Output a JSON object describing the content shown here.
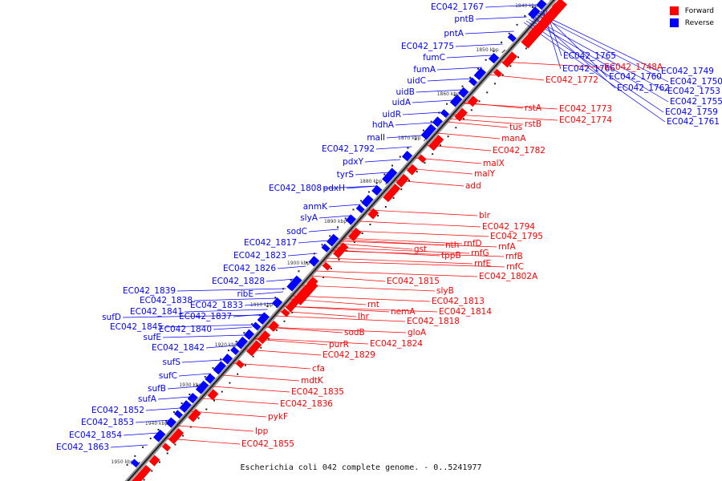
{
  "legend": {
    "forward_label": "Forward",
    "reverse_label": "Reverse",
    "forward_color": "#ff0000",
    "reverse_color": "#0000ff"
  },
  "caption": "Escherichia coli 042 complete genome. - 0..5241977",
  "ticks": [
    "1840 kbp",
    "1850 kbp",
    "1860 kbp",
    "1870 kbp",
    "1880 kbp",
    "1890 kbp",
    "1900 kbp",
    "1910 kbp",
    "1920 kbp",
    "1930 kbp",
    "1940 kbp",
    "1950 kbp"
  ],
  "reverse_labels": [
    "EC042_1767",
    "pntB",
    "pntA",
    "EC042_1775",
    "fumC",
    "fumA",
    "uidC",
    "uidB",
    "uidA",
    "uidR",
    "hdhA",
    "malI",
    "EC042_1792",
    "pdxY",
    "tyrS",
    "EC042_1808",
    "pdxH",
    "anmK",
    "slyA",
    "sodC",
    "EC042_1817",
    "EC042_1823",
    "EC042_1826",
    "EC042_1828",
    "ribE",
    "EC042_1839",
    "EC042_1838",
    "EC042_1841",
    "EC042_1833",
    "EC042_1837",
    "sufD",
    "EC042_1845",
    "EC042_1840",
    "sufE",
    "EC042_1842",
    "sufS",
    "sufC",
    "sufB",
    "sufA",
    "EC042_1852",
    "EC042_1853",
    "EC042_1854",
    "EC042_1863",
    "EC042_1765",
    "EC042_1766",
    "EC042_1760",
    "EC042_1749",
    "EC042_1750",
    "EC042_1762",
    "EC042_1753",
    "EC042_1755",
    "EC042_1759",
    "EC042_1761"
  ],
  "forward_labels": [
    "EC042_1748A",
    "EC042_1772",
    "rstA",
    "rstB",
    "EC042_1773",
    "EC042_1774",
    "tus",
    "manA",
    "EC042_1782",
    "malX",
    "malY",
    "add",
    "blr",
    "EC042_1794",
    "EC042_1795",
    "rnfA",
    "rnfB",
    "rnfC",
    "EC042_1802A",
    "nth",
    "rnfD",
    "rnfG",
    "tppB",
    "rnfE",
    "gst",
    "EC042_1815",
    "slyB",
    "EC042_1813",
    "EC042_1814",
    "rnt",
    "nemA",
    "EC042_1818",
    "gloA",
    "EC042_1824",
    "lhr",
    "sodB",
    "purR",
    "EC042_1829",
    "cfa",
    "mdtK",
    "EC042_1835",
    "EC042_1836",
    "pykF",
    "lpp",
    "EC042_1855"
  ]
}
